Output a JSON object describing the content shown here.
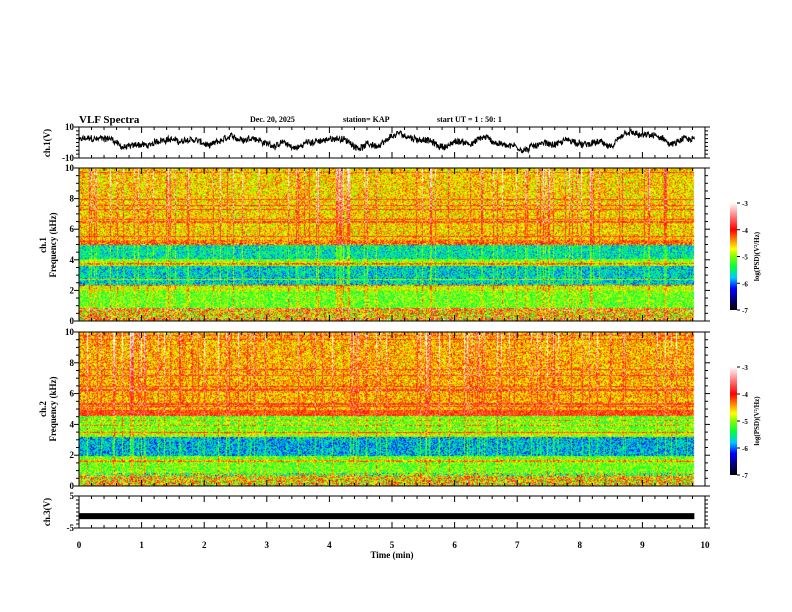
{
  "header": {
    "title": "VLF Spectra",
    "date": "Dec. 20, 2025",
    "station": "station= KAP",
    "start_ut": "start  UT =   1 : 50: 1"
  },
  "chart_data": [
    {
      "id": "ch1-waveform",
      "type": "line",
      "ylabel": "ch.1(V)",
      "ylim": [
        -10,
        10
      ],
      "yticks": [
        "10",
        "-10"
      ],
      "xlim": [
        0,
        10
      ],
      "data_end_min": 9.83,
      "description": "noisy voltage trace around 0 V, amplitude roughly -6..6 V",
      "series_color": "#000000"
    },
    {
      "id": "ch1-spectrogram",
      "type": "heatmap",
      "ylabel_line1": "ch.1",
      "ylabel_line2": "Frequency  (kHz)",
      "ylim": [
        0,
        10
      ],
      "yticks": [
        "0",
        "2",
        "4",
        "6",
        "8",
        "10"
      ],
      "xlim": [
        0,
        10
      ],
      "data_end_min": 9.83,
      "bands": [
        {
          "f_lo": 0.0,
          "f_hi": 0.9,
          "level": -4.6,
          "note": "striped multicolor low band"
        },
        {
          "f_lo": 0.9,
          "f_hi": 2.0,
          "level": -5.1
        },
        {
          "f_lo": 2.0,
          "f_hi": 2.4,
          "level": -4.8
        },
        {
          "f_lo": 2.4,
          "f_hi": 3.6,
          "level": -5.7
        },
        {
          "f_lo": 3.6,
          "f_hi": 4.0,
          "level": -5.0
        },
        {
          "f_lo": 4.0,
          "f_hi": 5.0,
          "level": -5.6
        },
        {
          "f_lo": 5.0,
          "f_hi": 5.3,
          "level": -4.3
        },
        {
          "f_lo": 5.3,
          "f_hi": 10.0,
          "level": -4.6
        }
      ],
      "colorbar": {
        "label": "log(PSD)(V²/Hz)",
        "range": [
          -7,
          -3
        ],
        "ticks": [
          "-3",
          "-4",
          "-5",
          "-6",
          "-7"
        ]
      }
    },
    {
      "id": "ch2-spectrogram",
      "type": "heatmap",
      "ylabel_line1": "ch.2",
      "ylabel_line2": "Frequency  (kHz)",
      "ylim": [
        0,
        10
      ],
      "yticks": [
        "0",
        "2",
        "4",
        "6",
        "8",
        "10"
      ],
      "xlim": [
        0,
        10
      ],
      "data_end_min": 9.83,
      "bands": [
        {
          "f_lo": 0.0,
          "f_hi": 0.7,
          "level": -4.6,
          "note": "striped multicolor low band"
        },
        {
          "f_lo": 0.7,
          "f_hi": 2.0,
          "level": -5.1
        },
        {
          "f_lo": 2.0,
          "f_hi": 3.2,
          "level": -5.8
        },
        {
          "f_lo": 3.2,
          "f_hi": 3.6,
          "level": -4.9
        },
        {
          "f_lo": 3.6,
          "f_hi": 4.6,
          "level": -5.1
        },
        {
          "f_lo": 4.6,
          "f_hi": 5.0,
          "level": -4.1
        },
        {
          "f_lo": 5.0,
          "f_hi": 10.0,
          "level": -4.5
        }
      ],
      "colorbar": {
        "label": "log(PSD)(V²/Hz)",
        "range": [
          -7,
          -3
        ],
        "ticks": [
          "-3",
          "-4",
          "-5",
          "-6",
          "-7"
        ]
      }
    },
    {
      "id": "ch3-waveform",
      "type": "line",
      "ylabel": "ch.3(V)",
      "ylim": [
        -5,
        5
      ],
      "yticks": [
        "5",
        "-5"
      ],
      "xlim": [
        0,
        10
      ],
      "data_end_min": 9.83,
      "level_v": -1.3,
      "description": "thick constant band near -1.3 V",
      "series_color": "#000000"
    }
  ],
  "x_axis": {
    "label": "Time  (min)",
    "ticks": [
      "0",
      "1",
      "2",
      "3",
      "4",
      "5",
      "6",
      "7",
      "8",
      "9",
      "10"
    ]
  }
}
